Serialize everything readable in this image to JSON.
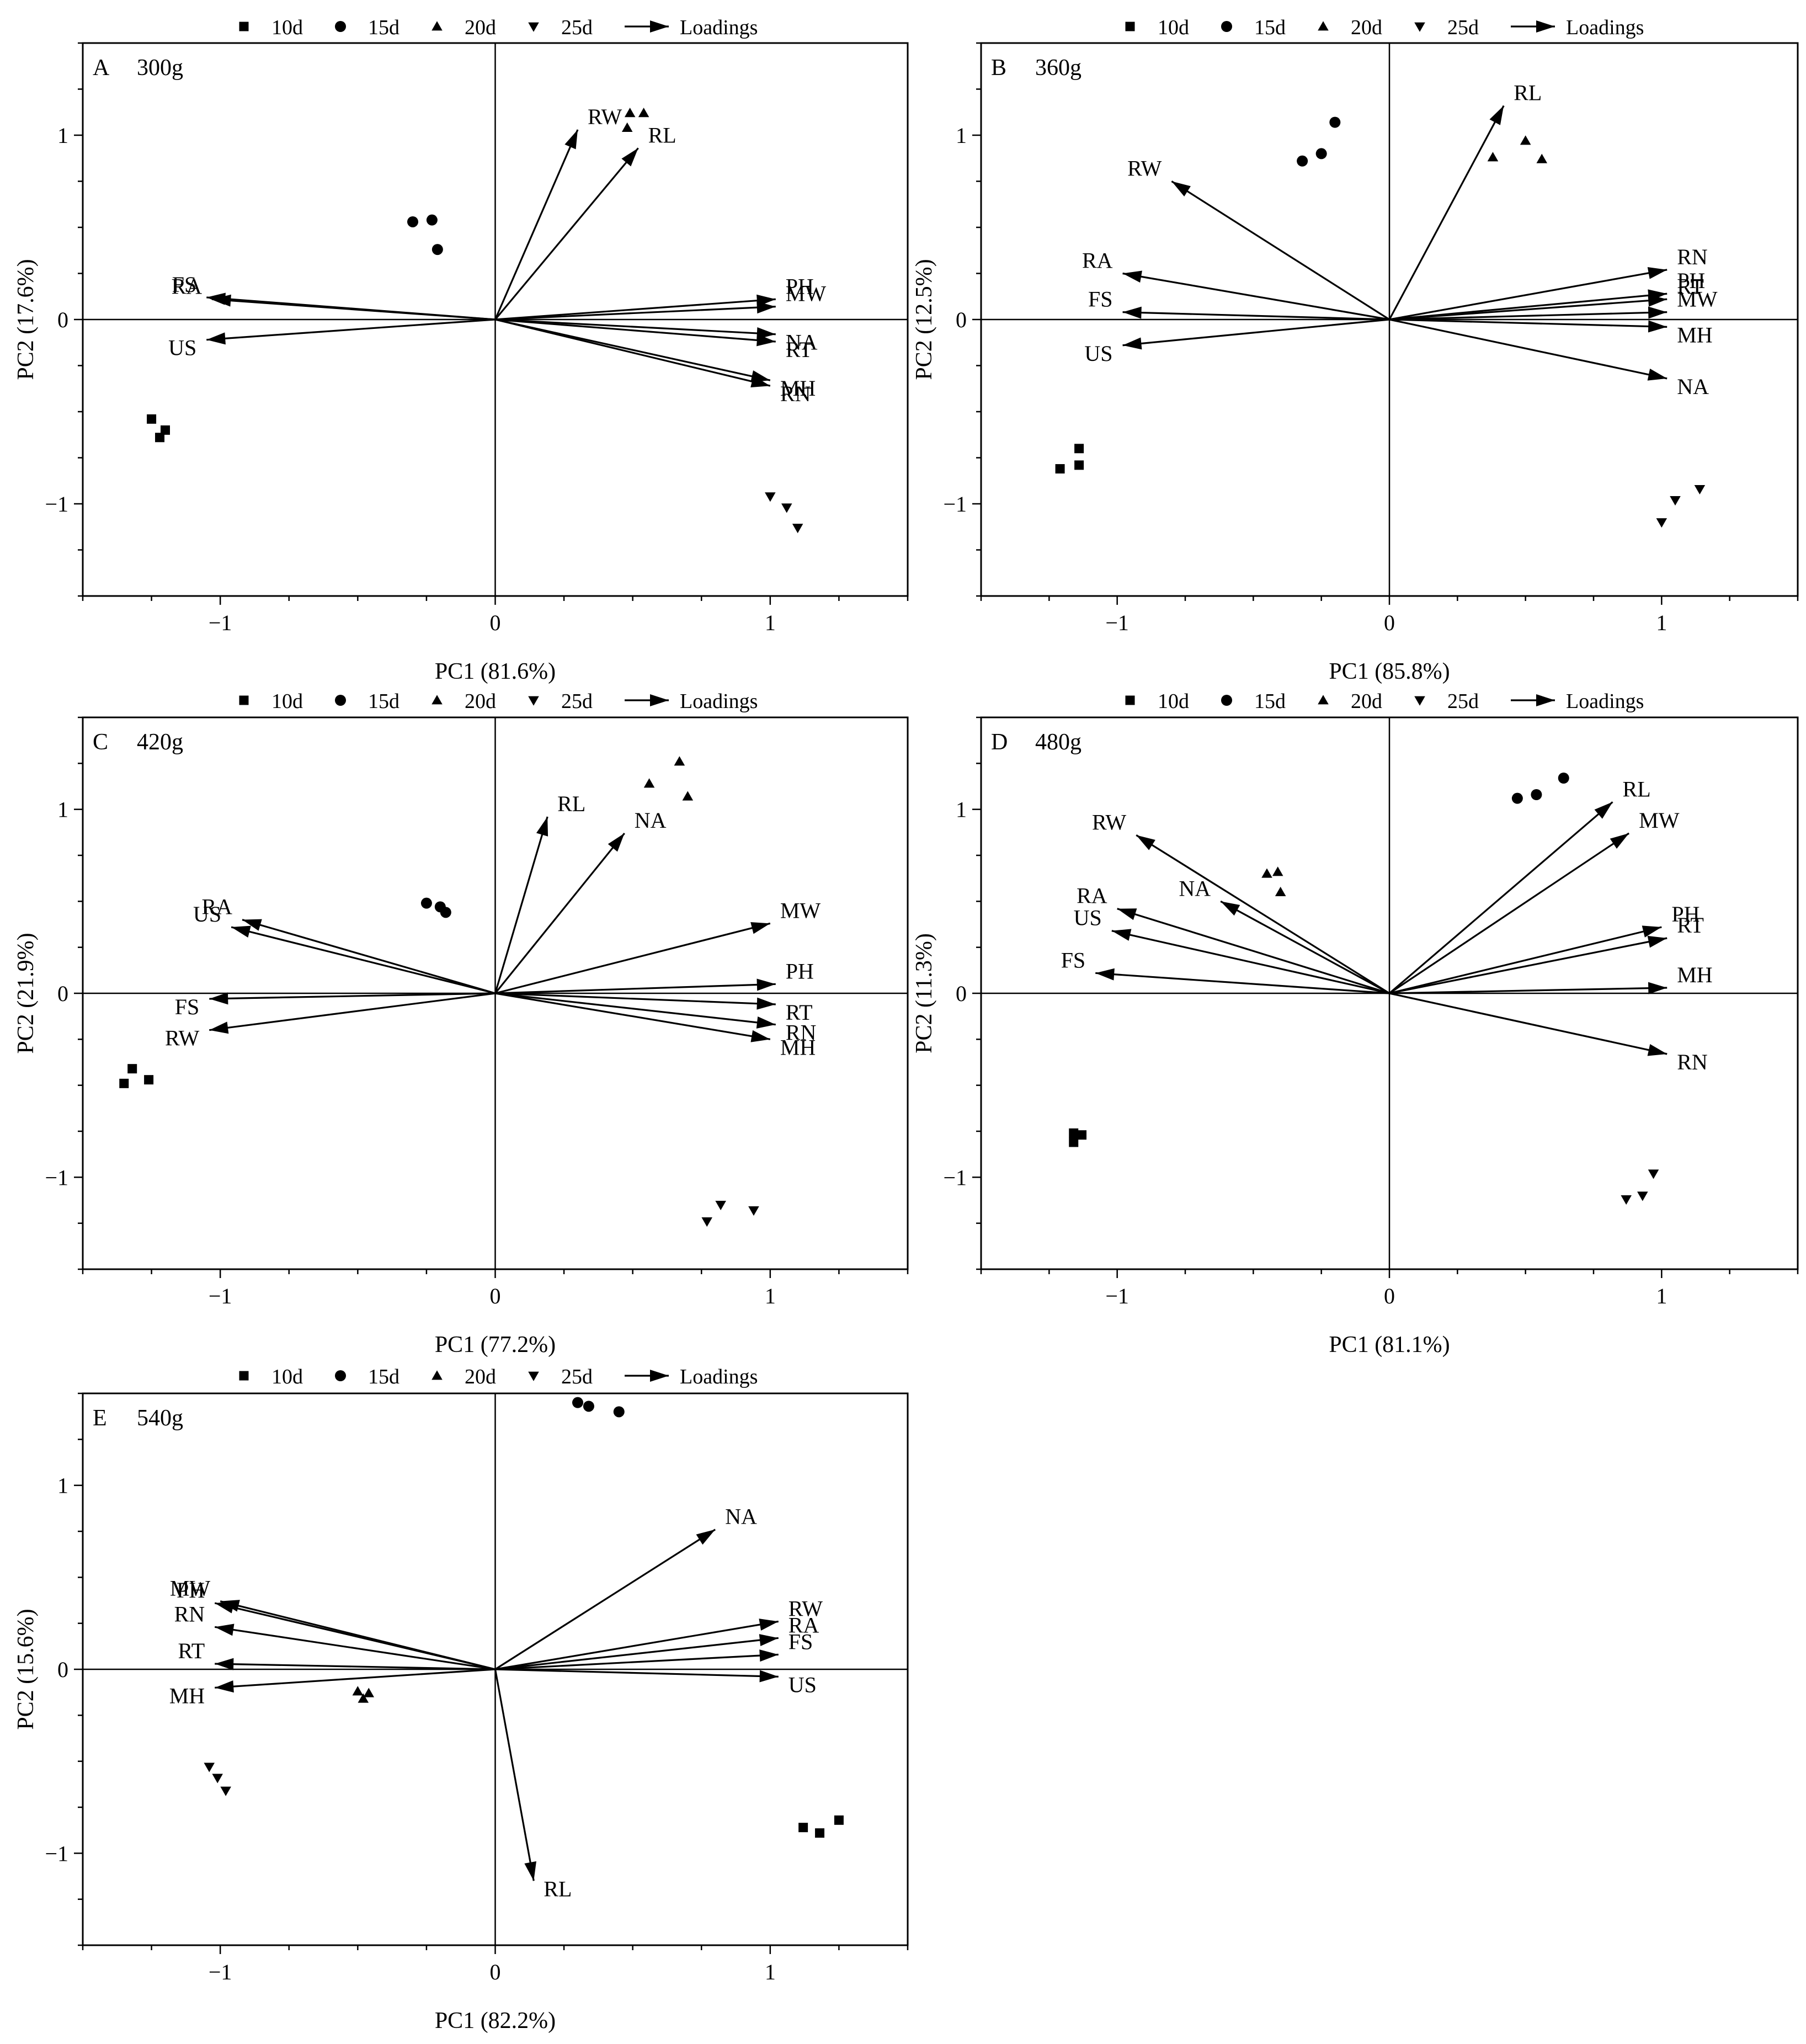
{
  "legend": {
    "items": [
      {
        "label": "10d",
        "marker": "square"
      },
      {
        "label": "15d",
        "marker": "circle"
      },
      {
        "label": "20d",
        "marker": "triangle-up"
      },
      {
        "label": "25d",
        "marker": "triangle-down"
      },
      {
        "label": "Loadings",
        "marker": "arrow"
      }
    ]
  },
  "chart_data": [
    {
      "type": "scatter",
      "panel": "A",
      "title": "300g",
      "xlabel": "PC1 (81.6%)",
      "ylabel": "PC2 (17.6%)",
      "xlim": [
        -1.5,
        1.5
      ],
      "ylim": [
        -1.5,
        1.5
      ],
      "xticks": [
        {
          "value": -1,
          "label": "−1"
        },
        {
          "value": 0,
          "label": "0"
        },
        {
          "value": 1,
          "label": "1"
        }
      ],
      "yticks": [
        {
          "value": -1,
          "label": "−1"
        },
        {
          "value": 0,
          "label": "0"
        },
        {
          "value": 1,
          "label": "1"
        }
      ],
      "series": [
        {
          "name": "10d",
          "marker": "square",
          "points": [
            [
              -1.25,
              -0.54
            ],
            [
              -1.2,
              -0.6
            ],
            [
              -1.22,
              -0.64
            ]
          ]
        },
        {
          "name": "15d",
          "marker": "circle",
          "points": [
            [
              -0.3,
              0.53
            ],
            [
              -0.23,
              0.54
            ],
            [
              -0.21,
              0.38
            ]
          ]
        },
        {
          "name": "20d",
          "marker": "triangle-up",
          "points": [
            [
              0.49,
              1.12
            ],
            [
              0.54,
              1.12
            ],
            [
              0.48,
              1.04
            ]
          ]
        },
        {
          "name": "25d",
          "marker": "triangle-down",
          "points": [
            [
              1.0,
              -0.96
            ],
            [
              1.06,
              -1.02
            ],
            [
              1.1,
              -1.13
            ]
          ]
        }
      ],
      "loadings": [
        {
          "label": "RW",
          "x": 0.3,
          "y": 1.03
        },
        {
          "label": "RL",
          "x": 0.52,
          "y": 0.93
        },
        {
          "label": "RA",
          "x": -1.03,
          "y": 0.11
        },
        {
          "label": "FS",
          "x": -1.05,
          "y": 0.12
        },
        {
          "label": "US",
          "x": -1.05,
          "y": -0.11
        },
        {
          "label": "PH",
          "x": 1.02,
          "y": 0.11
        },
        {
          "label": "MW",
          "x": 1.02,
          "y": 0.07
        },
        {
          "label": "NA",
          "x": 1.02,
          "y": -0.08
        },
        {
          "label": "RT",
          "x": 1.02,
          "y": -0.12
        },
        {
          "label": "MH",
          "x": 1.0,
          "y": -0.33
        },
        {
          "label": "RN",
          "x": 1.0,
          "y": -0.36
        }
      ]
    },
    {
      "type": "scatter",
      "panel": "B",
      "title": "360g",
      "xlabel": "PC1 (85.8%)",
      "ylabel": "PC2 (12.5%)",
      "xlim": [
        -1.5,
        1.5
      ],
      "ylim": [
        -1.5,
        1.5
      ],
      "xticks": [
        {
          "value": -1,
          "label": "−1"
        },
        {
          "value": 0,
          "label": "0"
        },
        {
          "value": 1,
          "label": "1"
        }
      ],
      "yticks": [
        {
          "value": -1,
          "label": "−1"
        },
        {
          "value": 0,
          "label": "0"
        },
        {
          "value": 1,
          "label": "1"
        }
      ],
      "series": [
        {
          "name": "10d",
          "marker": "square",
          "points": [
            [
              -1.21,
              -0.81
            ],
            [
              -1.14,
              -0.79
            ],
            [
              -1.14,
              -0.7
            ]
          ]
        },
        {
          "name": "15d",
          "marker": "circle",
          "points": [
            [
              -0.32,
              0.86
            ],
            [
              -0.25,
              0.9
            ],
            [
              -0.2,
              1.07
            ]
          ]
        },
        {
          "name": "20d",
          "marker": "triangle-up",
          "points": [
            [
              0.38,
              0.88
            ],
            [
              0.5,
              0.97
            ],
            [
              0.56,
              0.87
            ]
          ]
        },
        {
          "name": "25d",
          "marker": "triangle-down",
          "points": [
            [
              1.14,
              -0.92
            ],
            [
              1.05,
              -0.98
            ],
            [
              1.0,
              -1.1
            ]
          ]
        }
      ],
      "loadings": [
        {
          "label": "RL",
          "x": 0.42,
          "y": 1.16
        },
        {
          "label": "RW",
          "x": -0.8,
          "y": 0.75
        },
        {
          "label": "RA",
          "x": -0.98,
          "y": 0.25
        },
        {
          "label": "FS",
          "x": -0.98,
          "y": 0.04
        },
        {
          "label": "US",
          "x": -0.98,
          "y": -0.14
        },
        {
          "label": "RN",
          "x": 1.02,
          "y": 0.27
        },
        {
          "label": "PH",
          "x": 1.02,
          "y": 0.14
        },
        {
          "label": "RT",
          "x": 1.02,
          "y": 0.11
        },
        {
          "label": "MW",
          "x": 1.02,
          "y": 0.04
        },
        {
          "label": "MH",
          "x": 1.02,
          "y": -0.04
        },
        {
          "label": "NA",
          "x": 1.02,
          "y": -0.32
        }
      ]
    },
    {
      "type": "scatter",
      "panel": "C",
      "title": "420g",
      "xlabel": "PC1 (77.2%)",
      "ylabel": "PC2 (21.9%)",
      "xlim": [
        -1.5,
        1.5
      ],
      "ylim": [
        -1.5,
        1.5
      ],
      "xticks": [
        {
          "value": -1,
          "label": "−1"
        },
        {
          "value": 0,
          "label": "0"
        },
        {
          "value": 1,
          "label": "1"
        }
      ],
      "yticks": [
        {
          "value": -1,
          "label": "−1"
        },
        {
          "value": 0,
          "label": "0"
        },
        {
          "value": 1,
          "label": "1"
        }
      ],
      "series": [
        {
          "name": "10d",
          "marker": "square",
          "points": [
            [
              -1.35,
              -0.49
            ],
            [
              -1.32,
              -0.41
            ],
            [
              -1.26,
              -0.47
            ]
          ]
        },
        {
          "name": "15d",
          "marker": "circle",
          "points": [
            [
              -0.25,
              0.49
            ],
            [
              -0.2,
              0.47
            ],
            [
              -0.18,
              0.44
            ]
          ]
        },
        {
          "name": "20d",
          "marker": "triangle-up",
          "points": [
            [
              0.56,
              1.14
            ],
            [
              0.67,
              1.26
            ],
            [
              0.7,
              1.07
            ]
          ]
        },
        {
          "name": "25d",
          "marker": "triangle-down",
          "points": [
            [
              0.77,
              -1.24
            ],
            [
              0.82,
              -1.15
            ],
            [
              0.94,
              -1.18
            ]
          ]
        }
      ],
      "loadings": [
        {
          "label": "RL",
          "x": 0.19,
          "y": 0.96
        },
        {
          "label": "NA",
          "x": 0.47,
          "y": 0.87
        },
        {
          "label": "RA",
          "x": -0.92,
          "y": 0.4
        },
        {
          "label": "US",
          "x": -0.96,
          "y": 0.36
        },
        {
          "label": "FS",
          "x": -1.04,
          "y": -0.03
        },
        {
          "label": "RW",
          "x": -1.04,
          "y": -0.2
        },
        {
          "label": "MW",
          "x": 1.0,
          "y": 0.38
        },
        {
          "label": "PH",
          "x": 1.02,
          "y": 0.05
        },
        {
          "label": "RT",
          "x": 1.02,
          "y": -0.06
        },
        {
          "label": "RN",
          "x": 1.02,
          "y": -0.17
        },
        {
          "label": "MH",
          "x": 1.0,
          "y": -0.25
        }
      ]
    },
    {
      "type": "scatter",
      "panel": "D",
      "title": "480g",
      "xlabel": "PC1 (81.1%)",
      "ylabel": "PC2 (11.3%)",
      "xlim": [
        -1.5,
        1.5
      ],
      "ylim": [
        -1.5,
        1.5
      ],
      "xticks": [
        {
          "value": -1,
          "label": "−1"
        },
        {
          "value": 0,
          "label": "0"
        },
        {
          "value": 1,
          "label": "1"
        }
      ],
      "yticks": [
        {
          "value": -1,
          "label": "−1"
        },
        {
          "value": 0,
          "label": "0"
        },
        {
          "value": 1,
          "label": "1"
        }
      ],
      "series": [
        {
          "name": "10d",
          "marker": "square",
          "points": [
            [
              -1.16,
              -0.76
            ],
            [
              -1.13,
              -0.77
            ],
            [
              -1.16,
              -0.81
            ]
          ]
        },
        {
          "name": "15d",
          "marker": "circle",
          "points": [
            [
              0.47,
              1.06
            ],
            [
              0.54,
              1.08
            ],
            [
              0.64,
              1.17
            ]
          ]
        },
        {
          "name": "20d",
          "marker": "triangle-up",
          "points": [
            [
              -0.45,
              0.65
            ],
            [
              -0.41,
              0.66
            ],
            [
              -0.4,
              0.55
            ]
          ]
        },
        {
          "name": "25d",
          "marker": "triangle-down",
          "points": [
            [
              0.97,
              -0.98
            ],
            [
              0.93,
              -1.1
            ],
            [
              0.87,
              -1.12
            ]
          ]
        }
      ],
      "loadings": [
        {
          "label": "RL",
          "x": 0.82,
          "y": 1.04
        },
        {
          "label": "MW",
          "x": 0.88,
          "y": 0.87
        },
        {
          "label": "RW",
          "x": -0.93,
          "y": 0.86
        },
        {
          "label": "NA",
          "x": -0.62,
          "y": 0.5
        },
        {
          "label": "RA",
          "x": -1.0,
          "y": 0.46
        },
        {
          "label": "US",
          "x": -1.02,
          "y": 0.34
        },
        {
          "label": "FS",
          "x": -1.08,
          "y": 0.11
        },
        {
          "label": "PH",
          "x": 1.0,
          "y": 0.36
        },
        {
          "label": "RT",
          "x": 1.02,
          "y": 0.3
        },
        {
          "label": "MH",
          "x": 1.02,
          "y": 0.03
        },
        {
          "label": "RN",
          "x": 1.02,
          "y": -0.33
        }
      ]
    },
    {
      "type": "scatter",
      "panel": "E",
      "title": "540g",
      "xlabel": "PC1 (82.2%)",
      "ylabel": "PC2 (15.6%)",
      "xlim": [
        -1.5,
        1.5
      ],
      "ylim": [
        -1.5,
        1.5
      ],
      "xticks": [
        {
          "value": -1,
          "label": "−1"
        },
        {
          "value": 0,
          "label": "0"
        },
        {
          "value": 1,
          "label": "1"
        }
      ],
      "yticks": [
        {
          "value": -1,
          "label": "−1"
        },
        {
          "value": 0,
          "label": "0"
        },
        {
          "value": 1,
          "label": "1"
        }
      ],
      "series": [
        {
          "name": "10d",
          "marker": "square",
          "points": [
            [
              1.12,
              -0.86
            ],
            [
              1.18,
              -0.89
            ],
            [
              1.25,
              -0.82
            ]
          ]
        },
        {
          "name": "15d",
          "marker": "circle",
          "points": [
            [
              0.3,
              1.45
            ],
            [
              0.34,
              1.43
            ],
            [
              0.45,
              1.4
            ]
          ]
        },
        {
          "name": "20d",
          "marker": "triangle-up",
          "points": [
            [
              -0.5,
              -0.12
            ],
            [
              -0.46,
              -0.13
            ],
            [
              -0.48,
              -0.16
            ]
          ]
        },
        {
          "name": "25d",
          "marker": "triangle-down",
          "points": [
            [
              -1.04,
              -0.53
            ],
            [
              -1.01,
              -0.59
            ],
            [
              -0.98,
              -0.66
            ]
          ]
        }
      ],
      "loadings": [
        {
          "label": "NA",
          "x": 0.8,
          "y": 0.76
        },
        {
          "label": "RL",
          "x": 0.14,
          "y": -1.15
        },
        {
          "label": "MW",
          "x": -1.0,
          "y": 0.37
        },
        {
          "label": "PH",
          "x": -1.02,
          "y": 0.36
        },
        {
          "label": "RN",
          "x": -1.02,
          "y": 0.23
        },
        {
          "label": "RT",
          "x": -1.02,
          "y": 0.03
        },
        {
          "label": "MH",
          "x": -1.02,
          "y": -0.1
        },
        {
          "label": "RW",
          "x": 1.03,
          "y": 0.26
        },
        {
          "label": "RA",
          "x": 1.03,
          "y": 0.17
        },
        {
          "label": "FS",
          "x": 1.03,
          "y": 0.08
        },
        {
          "label": "US",
          "x": 1.03,
          "y": -0.04
        }
      ]
    }
  ]
}
